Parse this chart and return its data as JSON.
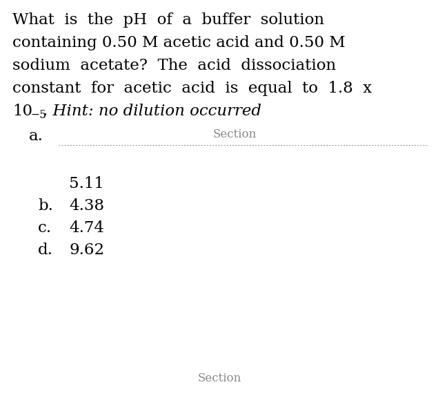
{
  "background_color": "#ffffff",
  "question_lines": [
    "What  is  the  pH  of  a  buffer  solution",
    "containing 0.50 M acetic acid and 0.50 M",
    "sodium  acetate?  The  acid  dissociation",
    "constant  for  acetic  acid  is  equal  to  1.8  x"
  ],
  "line5_normal": "10",
  "line5_superscript": "−5",
  "line5_italic": ". Hint: no dilution occurred",
  "section_label": "Section",
  "option_a_label": "a.",
  "option_b_label": "b.",
  "option_b_value": "4.38",
  "option_c_label": "c.",
  "option_c_value": "4.74",
  "option_d_label": "d.",
  "option_d_value": "9.62",
  "option_a_number": "5.11",
  "section_bottom": "Section",
  "font_size_question": 16.5,
  "font_size_options": 16.5,
  "font_size_section": 12,
  "text_color": "#000000",
  "dash_color": "#999999",
  "section_color": "#888888",
  "fig_width": 6.35,
  "fig_height": 5.76
}
